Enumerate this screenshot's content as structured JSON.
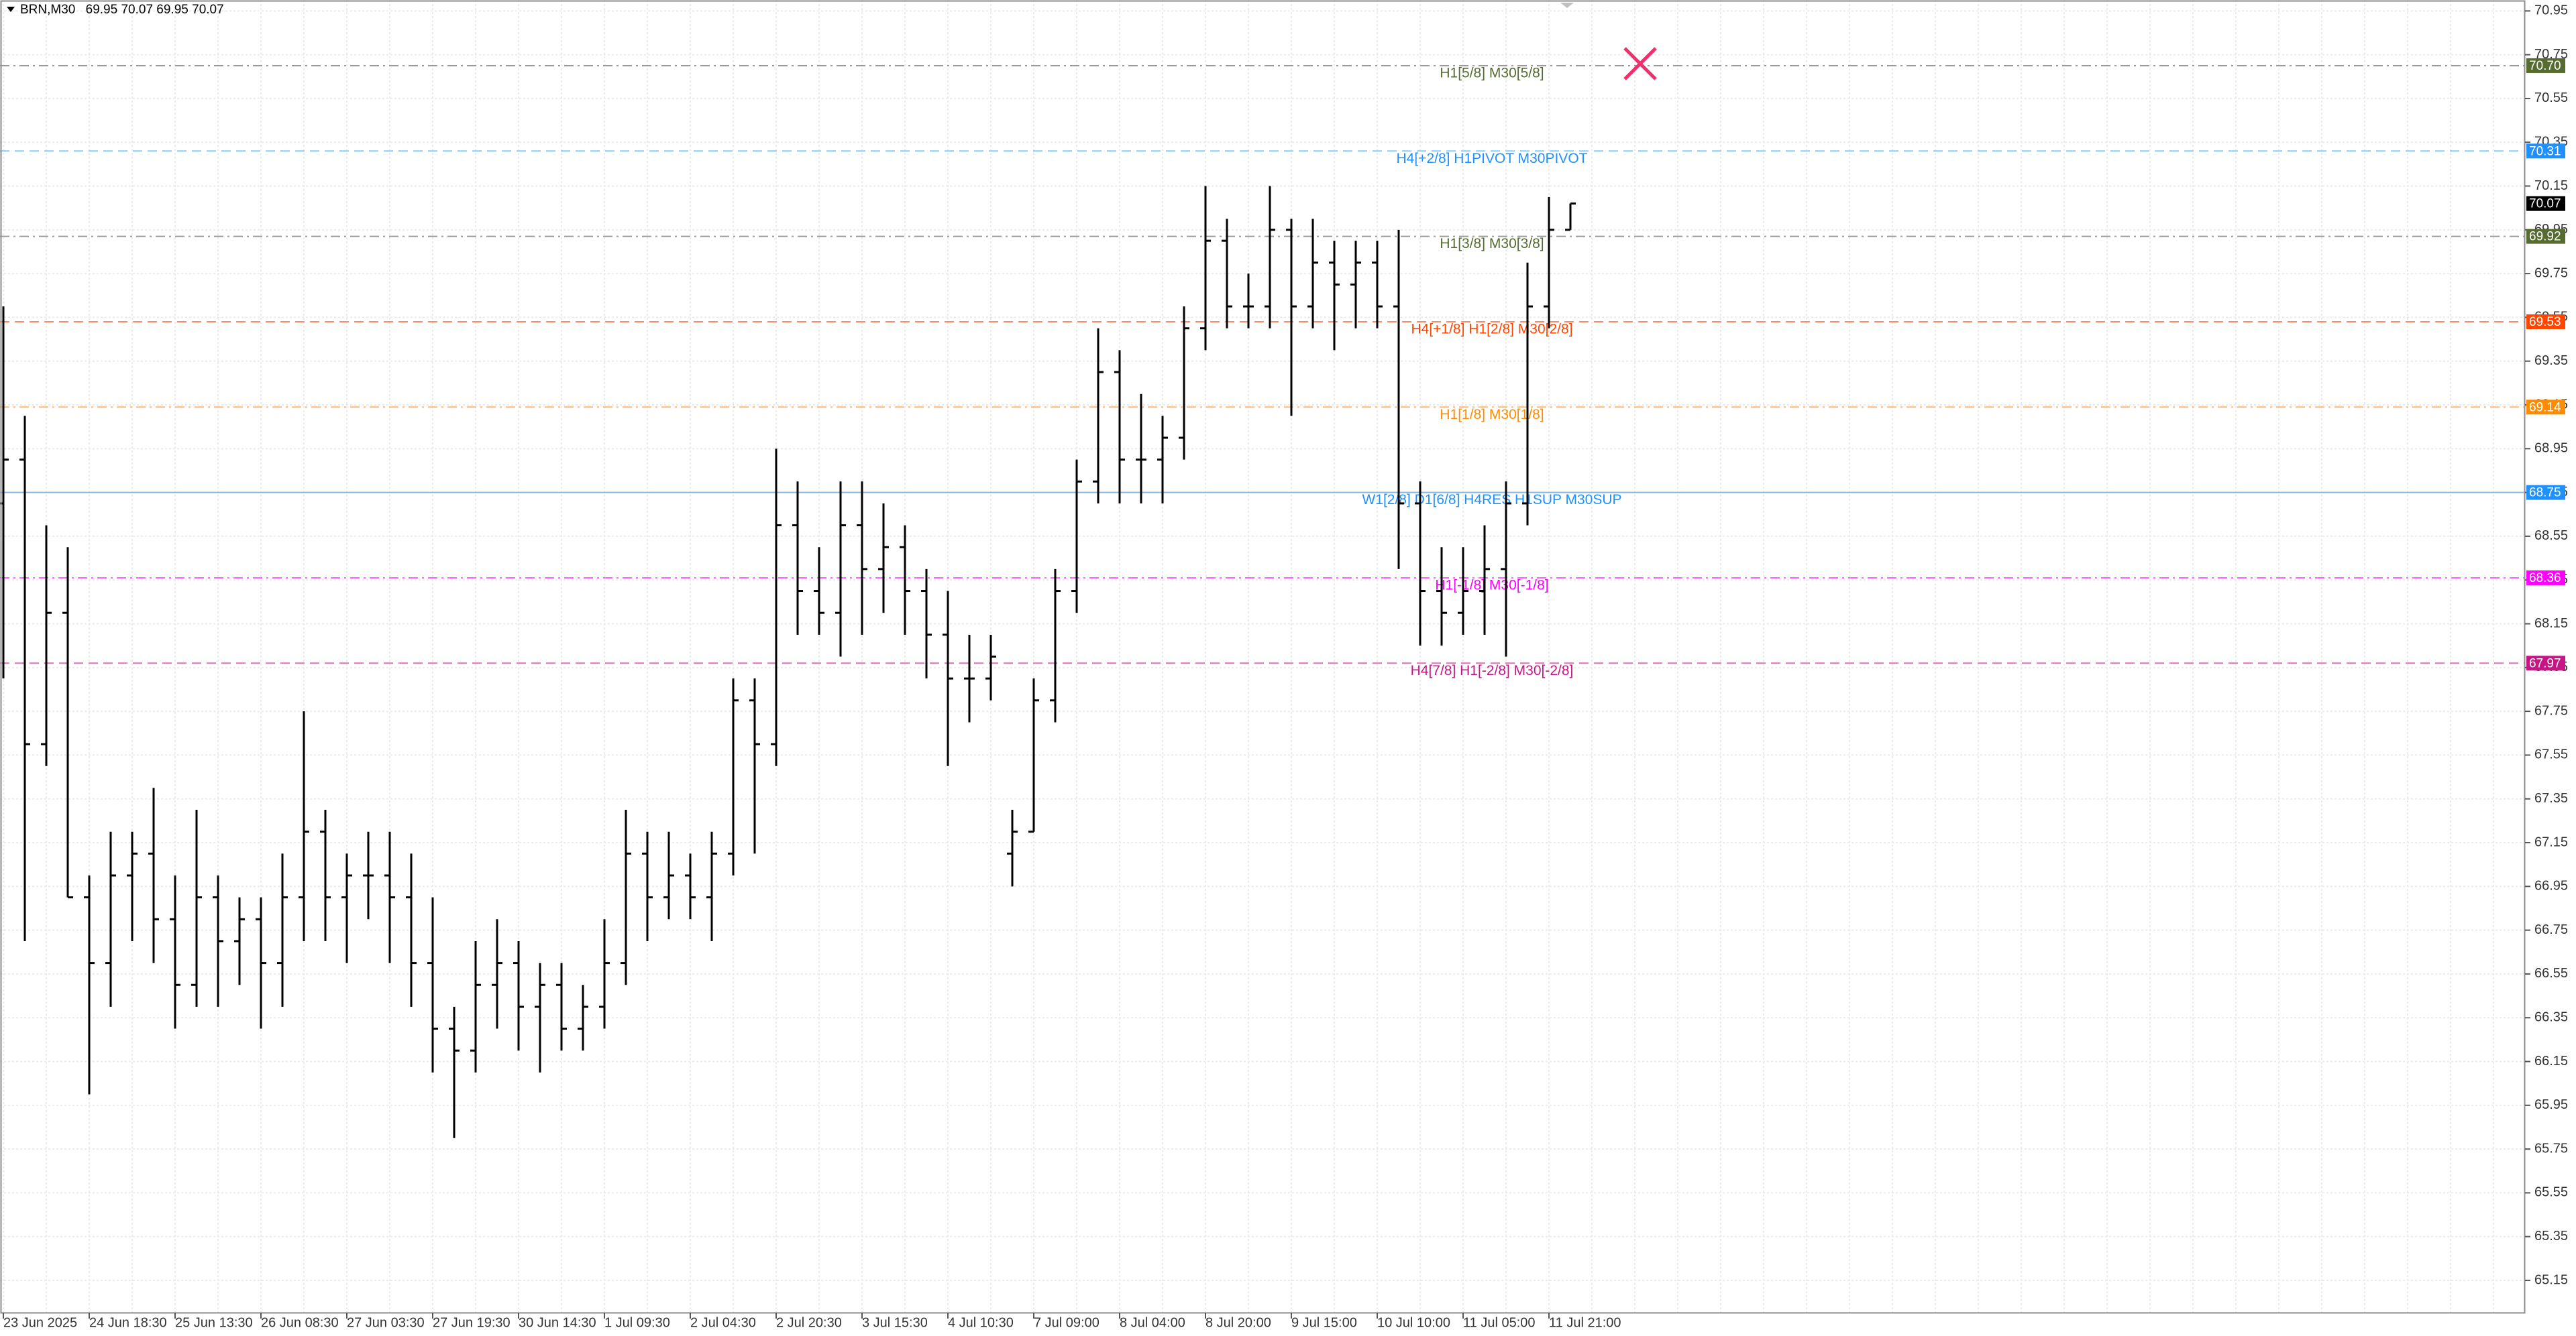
{
  "chart_data": {
    "type": "candlestick",
    "title": "BRN,M30",
    "header_values": [
      69.95,
      70.07,
      69.95,
      70.07
    ],
    "color": "#000000",
    "categories": [
      "23 Jun 2025",
      null,
      null,
      null,
      "24 Jun 18:30",
      null,
      null,
      null,
      "25 Jun 13:30",
      null,
      null,
      null,
      "26 Jun 08:30",
      null,
      null,
      null,
      "27 Jun 03:30",
      null,
      null,
      null,
      "27 Jun 19:30",
      null,
      null,
      null,
      "30 Jun 14:30",
      null,
      null,
      null,
      "1 Jul 09:30",
      null,
      null,
      null,
      "2 Jul 04:30",
      null,
      null,
      null,
      "2 Jul 20:30",
      null,
      null,
      null,
      "3 Jul 15:30",
      null,
      null,
      null,
      "4 Jul 10:30",
      null,
      null,
      null,
      "7 Jul 09:00",
      null,
      null,
      null,
      "8 Jul 04:00",
      null,
      null,
      null,
      "8 Jul 20:00",
      null,
      null,
      null,
      "9 Jul 15:00",
      null,
      null,
      null,
      "10 Jul 10:00",
      null,
      null,
      null,
      "11 Jul 05:00",
      null,
      null,
      null,
      "11 Jul 21:00",
      null
    ],
    "open": [
      68.7,
      68.9,
      67.6,
      68.2,
      66.9,
      66.6,
      67.0,
      67.1,
      66.8,
      66.5,
      66.9,
      66.7,
      66.8,
      66.6,
      66.9,
      67.2,
      66.9,
      67.0,
      67.0,
      66.9,
      66.6,
      66.3,
      66.2,
      66.5,
      66.6,
      66.4,
      66.5,
      66.3,
      66.4,
      66.6,
      67.1,
      66.9,
      67.0,
      66.9,
      67.1,
      67.8,
      67.6,
      68.6,
      68.3,
      68.2,
      68.6,
      68.4,
      68.5,
      68.3,
      68.1,
      67.9,
      67.9,
      67.1,
      67.2,
      67.8,
      68.3,
      68.8,
      69.3,
      68.9,
      68.9,
      69.0,
      69.5,
      69.9,
      69.6,
      69.6,
      69.95,
      69.6,
      69.8,
      69.7,
      69.8,
      69.6,
      68.7,
      68.3,
      68.2,
      68.3,
      68.4,
      68.7,
      69.6,
      69.95
    ],
    "high": [
      69.6,
      69.1,
      68.6,
      68.5,
      67.0,
      67.2,
      67.2,
      67.4,
      67.0,
      67.3,
      67.0,
      66.9,
      66.9,
      67.1,
      67.75,
      67.3,
      67.1,
      67.2,
      67.2,
      67.1,
      66.9,
      66.4,
      66.7,
      66.8,
      66.7,
      66.6,
      66.6,
      66.5,
      66.8,
      67.3,
      67.2,
      67.2,
      67.1,
      67.2,
      67.9,
      67.9,
      68.95,
      68.8,
      68.5,
      68.8,
      68.8,
      68.7,
      68.6,
      68.4,
      68.3,
      68.1,
      68.1,
      67.3,
      67.9,
      68.4,
      68.9,
      69.5,
      69.4,
      69.2,
      69.1,
      69.6,
      70.15,
      70.0,
      69.75,
      70.15,
      70.0,
      70.0,
      69.9,
      69.9,
      69.9,
      69.95,
      68.8,
      68.5,
      68.5,
      68.6,
      68.8,
      69.8,
      70.1,
      70.07
    ],
    "low": [
      67.9,
      66.7,
      67.5,
      66.9,
      66.0,
      66.4,
      66.7,
      66.6,
      66.3,
      66.4,
      66.4,
      66.5,
      66.3,
      66.4,
      66.7,
      66.7,
      66.6,
      66.8,
      66.6,
      66.4,
      66.1,
      65.8,
      66.1,
      66.3,
      66.2,
      66.1,
      66.2,
      66.2,
      66.3,
      66.5,
      66.7,
      66.8,
      66.8,
      66.7,
      67.0,
      67.1,
      67.5,
      68.1,
      68.1,
      68.0,
      68.1,
      68.2,
      68.1,
      67.9,
      67.5,
      67.7,
      67.8,
      66.95,
      67.2,
      67.7,
      68.2,
      68.7,
      68.7,
      68.7,
      68.7,
      68.9,
      69.4,
      69.5,
      69.5,
      69.5,
      69.1,
      69.5,
      69.4,
      69.5,
      69.5,
      68.4,
      68.05,
      68.05,
      68.1,
      68.1,
      68.0,
      68.6,
      69.5,
      69.95
    ],
    "close": [
      68.9,
      67.6,
      68.2,
      66.9,
      66.6,
      67.0,
      67.1,
      66.8,
      66.5,
      66.9,
      66.7,
      66.8,
      66.6,
      66.9,
      67.2,
      66.9,
      67.0,
      67.0,
      66.9,
      66.6,
      66.3,
      66.2,
      66.5,
      66.6,
      66.4,
      66.5,
      66.3,
      66.4,
      66.6,
      67.1,
      66.9,
      67.0,
      66.9,
      67.1,
      67.8,
      67.6,
      68.6,
      68.3,
      68.2,
      68.6,
      68.4,
      68.5,
      68.3,
      68.1,
      67.9,
      67.9,
      68.0,
      67.2,
      67.8,
      68.3,
      68.8,
      69.3,
      68.9,
      68.9,
      69.0,
      69.5,
      69.9,
      69.6,
      69.6,
      69.95,
      69.6,
      69.8,
      69.7,
      69.8,
      69.6,
      68.7,
      68.3,
      68.2,
      68.3,
      68.4,
      68.7,
      69.6,
      69.95,
      70.07
    ],
    "ylim": [
      65.0,
      71.0
    ],
    "yticks": [
      70.95,
      70.75,
      70.55,
      70.35,
      70.15,
      69.95,
      69.75,
      69.55,
      69.35,
      69.15,
      68.95,
      68.75,
      68.55,
      68.35,
      68.15,
      67.95,
      67.75,
      67.55,
      67.35,
      67.15,
      66.95,
      66.75,
      66.55,
      66.35,
      66.15,
      65.95,
      65.75,
      65.55,
      65.35,
      65.15
    ],
    "grid": true,
    "levels": [
      {
        "value": 70.7,
        "value_label": "70.70",
        "text": "H1[5/8] M30[5/8]",
        "color": "#556b2f",
        "line_color": "#9a9a9a",
        "style": "dashdot"
      },
      {
        "value": 70.31,
        "value_label": "70.31",
        "text": "H4[+2/8] H1PIVOT M30PIVOT",
        "color": "#1e90ff",
        "line_color": "#87cefa",
        "style": "dash"
      },
      {
        "value": 69.92,
        "value_label": "69.92",
        "text": "H1[3/8] M30[3/8]",
        "color": "#556b2f",
        "line_color": "#9a9a9a",
        "style": "dashdot"
      },
      {
        "value": 69.53,
        "value_label": "69.53",
        "text": "H4[+1/8] H1[2/8] M30[2/8]",
        "color": "#ff4500",
        "line_color": "#ff8c69",
        "style": "dash"
      },
      {
        "value": 69.14,
        "value_label": "69.14",
        "text": "H1[1/8] M30[1/8]",
        "color": "#ff8c00",
        "line_color": "#ffb870",
        "style": "dashdot"
      },
      {
        "value": 68.75,
        "value_label": "68.75",
        "text": "W1[2/8] D1[6/8] H4RES H1SUP M30SUP",
        "color": "#1e90ff",
        "line_color": "#8ab8e6",
        "style": "solid"
      },
      {
        "value": 68.36,
        "value_label": "68.36",
        "text": "H1[-1/8] M30[-1/8]",
        "color": "#ff00ff",
        "line_color": "#ff66ff",
        "style": "dashdot"
      },
      {
        "value": 67.97,
        "value_label": "67.97",
        "text": "H4[7/8] H1[-2/8] M30[-2/8]",
        "color": "#c71585",
        "line_color": "#e070b0",
        "style": "dash"
      }
    ],
    "last_price": {
      "value": 70.07,
      "color": "#000000"
    }
  }
}
